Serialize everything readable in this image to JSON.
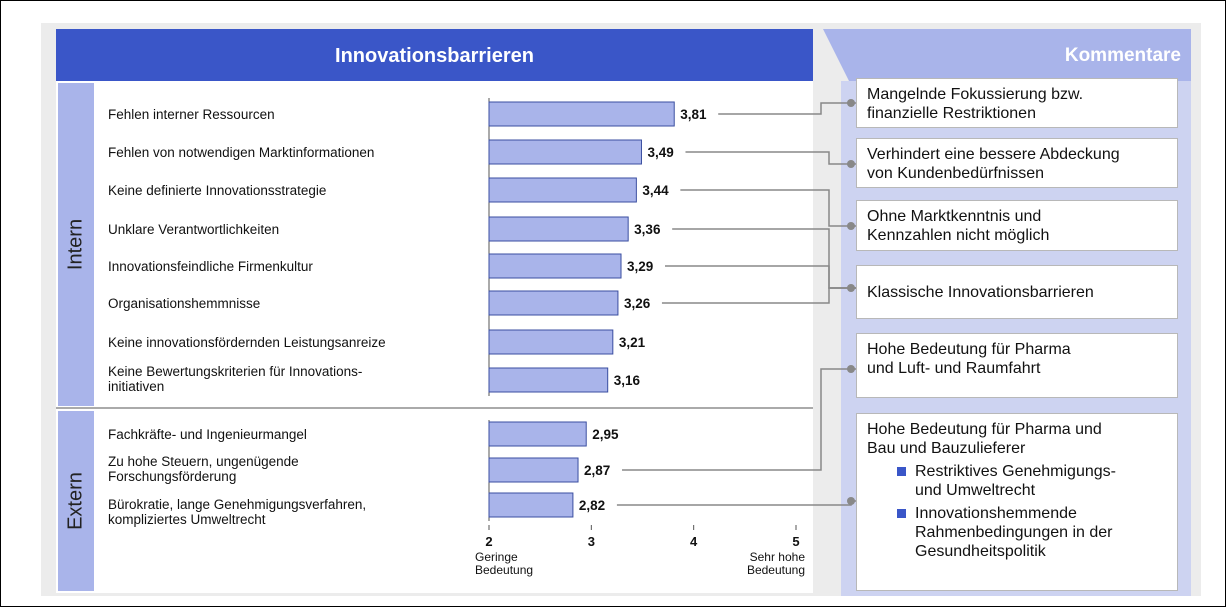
{
  "chart_data": {
    "type": "bar",
    "orientation": "horizontal",
    "title": "Innovationsbarrieren",
    "groups": [
      {
        "name": "Intern",
        "categories": [
          "Fehlen interner Ressourcen",
          "Fehlen von notwendigen Marktinformationen",
          "Keine definierte Innovationsstrategie",
          "Unklare Verantwortlichkeiten",
          "Innovationsfeindliche Firmenkultur",
          "Organisationshemmnisse",
          "Keine innovationsfördernden Leistungsanreize",
          "Keine Bewertungskriterien für Innovations-\ninitiativen"
        ],
        "values": [
          3.81,
          3.49,
          3.44,
          3.36,
          3.29,
          3.26,
          3.21,
          3.16
        ],
        "value_labels": [
          "3,81",
          "3,49",
          "3,44",
          "3,36",
          "3,29",
          "3,26",
          "3,21",
          "3,16"
        ]
      },
      {
        "name": "Extern",
        "categories": [
          "Fachkräfte- und Ingenieurmangel",
          "Zu hohe Steuern, ungenügende\nForschungsförderung",
          "Bürokratie, lange Genehmigungsverfahren,\nkompliziertes Umweltrecht"
        ],
        "values": [
          2.95,
          2.87,
          2.82
        ],
        "value_labels": [
          "2,95",
          "2,87",
          "2,82"
        ]
      }
    ],
    "color": "#a9b4ea",
    "edge_color": "#3a4ea0",
    "xlim": [
      2,
      5
    ],
    "xticks": [
      2,
      3,
      4,
      5
    ],
    "x_low_label": "Geringe\nBedeutung",
    "x_high_label": "Sehr hohe\nBedeutung"
  },
  "comments": {
    "title": "Kommentare",
    "items": [
      {
        "text": "Mangelnde Fokussierung bzw.\nfinanzielle Restriktionen"
      },
      {
        "text": "Verhindert eine bessere Abdeckung\nvon Kundenbedürfnissen"
      },
      {
        "text": "Ohne Marktkenntnis und\nKennzahlen nicht möglich"
      },
      {
        "text": "Klassische Innovationsbarrieren"
      },
      {
        "text": "Hohe Bedeutung für Pharma\nund Luft- und Raumfahrt"
      },
      {
        "text": "Hohe Bedeutung für Pharma und\nBau und Bauzulieferer",
        "bullets": [
          "Restriktives Genehmigungs-\nund Umweltrecht",
          "Innovationshemmende\nRahmenbedingungen in der\nGesundheitspolitik"
        ]
      }
    ]
  }
}
